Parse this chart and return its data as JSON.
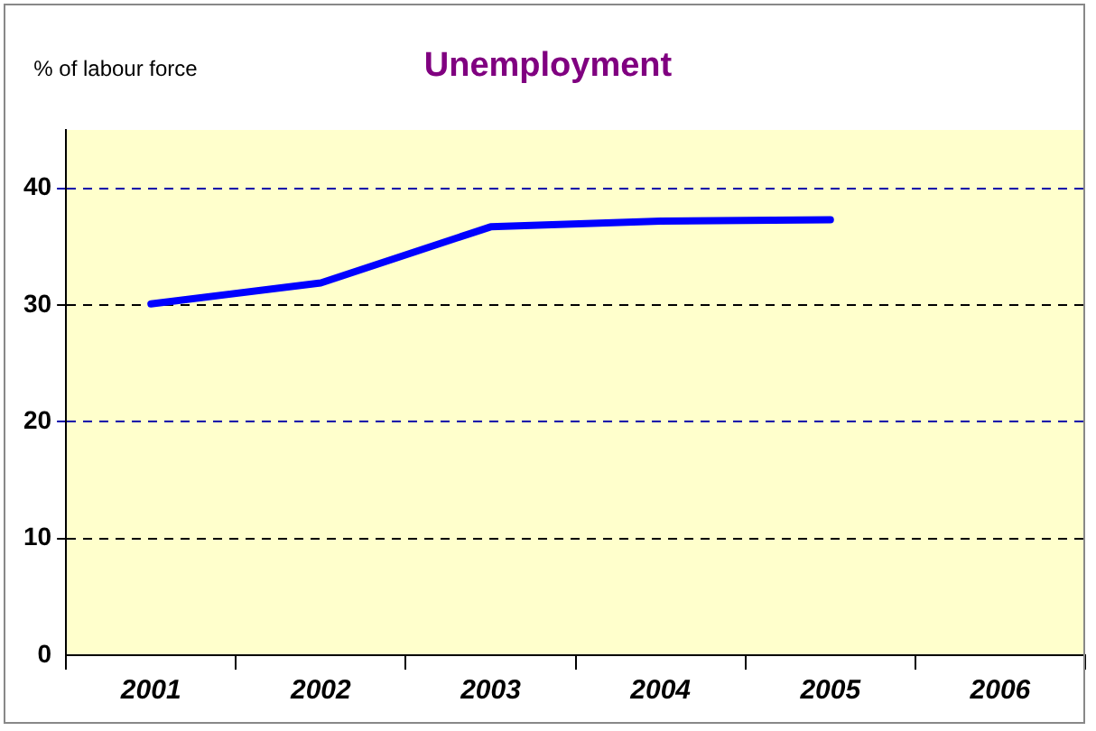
{
  "chart_data": {
    "type": "line",
    "title": "Unemployment",
    "ylabel": "% of labour force",
    "categories": [
      "2001",
      "2002",
      "2003",
      "2004",
      "2005",
      "2006"
    ],
    "series": [
      {
        "color": "#0000ff",
        "values": [
          30.1,
          31.9,
          36.7,
          37.2,
          37.3,
          null
        ]
      }
    ],
    "ylim": [
      0,
      45
    ],
    "yticks": [
      0,
      10,
      20,
      30,
      40
    ],
    "grid": "y",
    "legend": false,
    "marker": "none",
    "line_style": "solid"
  }
}
